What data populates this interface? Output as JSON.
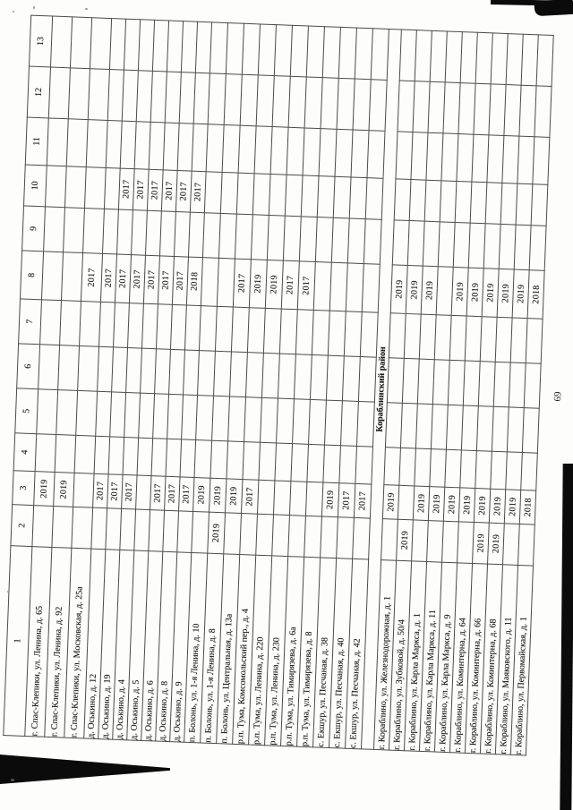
{
  "page": {
    "number": "69"
  },
  "colors": {
    "paper": "#fdfdfc",
    "ink": "#161616",
    "artifact": "#0b0b0b"
  },
  "table": {
    "column_headers": [
      "1",
      "2",
      "3",
      "4",
      "5",
      "6",
      "7",
      "8",
      "9",
      "10",
      "11",
      "12",
      "13"
    ],
    "sections": [
      {
        "title": "",
        "rows": [
          {
            "cells": [
              "г. Спас-Клепики, ул. Ленина, д. 65",
              "",
              "2019",
              "",
              "",
              "",
              "",
              "",
              "",
              "",
              "",
              "",
              ""
            ]
          },
          {
            "cells": [
              "г. Спас-Клепики, ул. Ленина, д. 92",
              "",
              "2019",
              "",
              "",
              "",
              "",
              "",
              "",
              "",
              "",
              "",
              ""
            ]
          },
          {
            "cells": [
              "г. Спас-Клепики, ул. Московская, д. 25а",
              "",
              "",
              "",
              "",
              "",
              "",
              "2017",
              "",
              "",
              "",
              "",
              ""
            ]
          },
          {
            "cells": [
              "д. Оськино, д. 12",
              "",
              "2017",
              "",
              "",
              "",
              "",
              "2017",
              "",
              "",
              "",
              "",
              ""
            ]
          },
          {
            "cells": [
              "д. Оськино, д. 19",
              "",
              "2017",
              "",
              "",
              "",
              "",
              "2017",
              "",
              "2017",
              "",
              "",
              ""
            ]
          },
          {
            "cells": [
              "д. Оськино, д. 4",
              "",
              "2017",
              "",
              "",
              "",
              "",
              "2017",
              "",
              "2017",
              "",
              "",
              ""
            ]
          },
          {
            "cells": [
              "д. Оськино, д. 5",
              "",
              "",
              "",
              "",
              "",
              "",
              "2017",
              "",
              "2017",
              "",
              "",
              ""
            ]
          },
          {
            "cells": [
              "д. Оськино, д. 6",
              "",
              "2017",
              "",
              "",
              "",
              "",
              "2017",
              "",
              "2017",
              "",
              "",
              ""
            ]
          },
          {
            "cells": [
              "д. Оськино, д. 8",
              "",
              "2017",
              "",
              "",
              "",
              "",
              "2017",
              "",
              "2017",
              "",
              "",
              ""
            ]
          },
          {
            "cells": [
              "д. Оськино, д. 9",
              "",
              "2017",
              "",
              "",
              "",
              "",
              "2018",
              "",
              "2017",
              "",
              "",
              ""
            ]
          },
          {
            "cells": [
              "п. Болонь, ул. 1-я Ленина, д. 10",
              "",
              "2019",
              "",
              "",
              "",
              "",
              "",
              "",
              "",
              "",
              "",
              ""
            ]
          },
          {
            "cells": [
              "п. Болонь, ул. 1-я Ленина, д. 8",
              "2019",
              "2019",
              "",
              "",
              "",
              "",
              "",
              "",
              "",
              "",
              "",
              ""
            ]
          },
          {
            "cells": [
              "п. Болонь, ул. Центральная, д. 13а",
              "",
              "2019",
              "",
              "",
              "",
              "",
              "2017",
              "",
              "",
              "",
              "",
              ""
            ]
          },
          {
            "cells": [
              "р.п. Тума, Комсомольский пер., д. 4",
              "",
              "2017",
              "",
              "",
              "",
              "",
              "2019",
              "",
              "",
              "",
              "",
              ""
            ]
          },
          {
            "cells": [
              "р.п. Тума, ул. Ленина, д. 220",
              "",
              "",
              "",
              "",
              "",
              "",
              "2019",
              "",
              "",
              "",
              "",
              ""
            ]
          },
          {
            "cells": [
              "р.п. Тума, ул. Ленина, д. 230",
              "",
              "",
              "",
              "",
              "",
              "",
              "2017",
              "",
              "",
              "",
              "",
              ""
            ]
          },
          {
            "cells": [
              "р.п. Тума, ул. Тимирязева, д. 6а",
              "",
              "",
              "",
              "",
              "",
              "",
              "2017",
              "",
              "",
              "",
              "",
              ""
            ]
          },
          {
            "cells": [
              "р.п. Тума, ул. Тимирязева, д. 8",
              "",
              "",
              "",
              "",
              "",
              "",
              "",
              "",
              "",
              "",
              "",
              ""
            ]
          },
          {
            "cells": [
              "с. Екшур, ул. Песчаная, д. 38",
              "",
              "2019",
              "",
              "",
              "",
              "",
              "",
              "",
              "",
              "",
              "",
              ""
            ]
          },
          {
            "cells": [
              "с. Екшур, ул. Песчаная, д. 40",
              "",
              "2017",
              "",
              "",
              "",
              "",
              "",
              "",
              "",
              "",
              "",
              ""
            ]
          },
          {
            "cells": [
              "с. Екшур, ул. Песчаная, д. 42",
              "",
              "2017",
              "",
              "",
              "",
              "",
              "",
              "",
              "",
              "",
              "",
              ""
            ]
          }
        ]
      },
      {
        "title": "Кораблинский район",
        "rows": [
          {
            "cells": [
              "г. Кораблино, ул. Железнодорожная, д. 1",
              "",
              "2019",
              "",
              "",
              "",
              "",
              "2019",
              "",
              "",
              "",
              "",
              ""
            ]
          },
          {
            "cells": [
              "г. Кораблино, ул. Зубковой, д. 50/4",
              "2019",
              "",
              "",
              "",
              "",
              "",
              "2019",
              "",
              "",
              "",
              "",
              ""
            ]
          },
          {
            "cells": [
              "г. Кораблино, ул. Карла Маркса, д. 1",
              "",
              "2019",
              "",
              "",
              "",
              "",
              "2019",
              "",
              "",
              "",
              "",
              ""
            ]
          },
          {
            "cells": [
              "г. Кораблино, ул. Карла Маркса, д. 11",
              "",
              "2019",
              "",
              "",
              "",
              "",
              "",
              "",
              "",
              "",
              "",
              ""
            ]
          },
          {
            "cells": [
              "г. Кораблино, ул. Карла Маркса, д. 9",
              "",
              "2019",
              "",
              "",
              "",
              "",
              "2019",
              "",
              "",
              "",
              "",
              ""
            ]
          },
          {
            "cells": [
              "г. Кораблино, ул. Коминтерна, д. 64",
              "",
              "2019",
              "",
              "",
              "",
              "",
              "2019",
              "",
              "",
              "",
              "",
              ""
            ]
          },
          {
            "cells": [
              "г. Кораблино, ул. Коминтерна, д. 66",
              "2019",
              "2019",
              "",
              "",
              "",
              "",
              "2019",
              "",
              "",
              "",
              "",
              ""
            ]
          },
          {
            "cells": [
              "г. Кораблино, ул. Коминтерна, д. 68",
              "2019",
              "2019",
              "",
              "",
              "",
              "",
              "2019",
              "",
              "",
              "",
              "",
              ""
            ]
          },
          {
            "cells": [
              "г. Кораблино, ул. Маяковского, д. 11",
              "",
              "2019",
              "",
              "",
              "",
              "",
              "2019",
              "",
              "",
              "",
              "",
              ""
            ]
          },
          {
            "cells": [
              "г. Кораблино, ул. Первомайская, д. 1",
              "",
              "2018",
              "",
              "",
              "",
              "",
              "2018",
              "",
              "",
              "",
              "",
              ""
            ]
          }
        ]
      }
    ]
  }
}
